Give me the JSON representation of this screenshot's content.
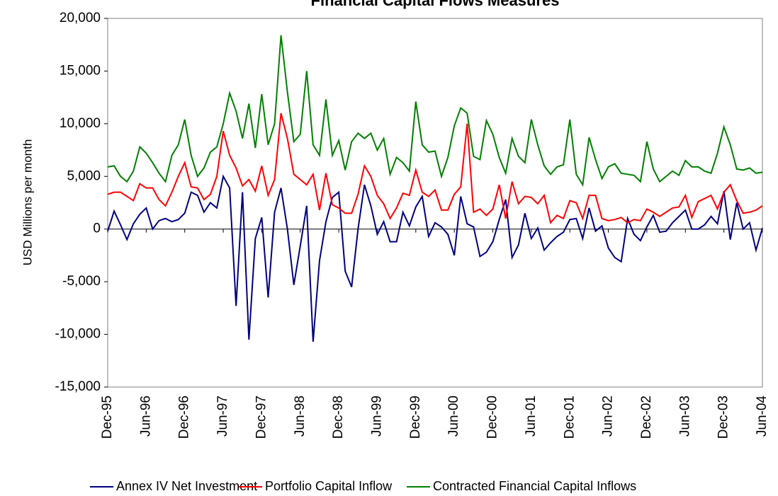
{
  "chart_data": {
    "type": "line",
    "title": "Financial Capital Flows Measures",
    "y_label": "USD Millions per month",
    "categories": [
      "Dec-95",
      null,
      null,
      null,
      null,
      null,
      "Jun-96",
      null,
      null,
      null,
      null,
      null,
      "Dec-96",
      null,
      null,
      null,
      null,
      null,
      "Jun-97",
      null,
      null,
      null,
      null,
      null,
      "Dec-97",
      null,
      null,
      null,
      null,
      null,
      "Jun-98",
      null,
      null,
      null,
      null,
      null,
      "Dec-98",
      null,
      null,
      null,
      null,
      null,
      "Jun-99",
      null,
      null,
      null,
      null,
      null,
      "Dec-99",
      null,
      null,
      null,
      null,
      null,
      "Jun-00",
      null,
      null,
      null,
      null,
      null,
      "Dec-00",
      null,
      null,
      null,
      null,
      null,
      "Jun-01",
      null,
      null,
      null,
      null,
      null,
      "Dec-01",
      null,
      null,
      null,
      null,
      null,
      "Jun-02",
      null,
      null,
      null,
      null,
      null,
      "Dec-02",
      null,
      null,
      null,
      null,
      null,
      "Jun-03",
      null,
      null,
      null,
      null,
      null,
      "Dec-03",
      null,
      null,
      null,
      null,
      null,
      "Jun-04"
    ],
    "series": [
      {
        "name": "Annex IV Net Investment",
        "color": "#000080",
        "values": [
          -200,
          1700,
          400,
          -1000,
          500,
          1400,
          2000,
          0,
          800,
          1000,
          700,
          900,
          1500,
          3500,
          3200,
          1600,
          2500,
          2000,
          5000,
          3900,
          -7300,
          3500,
          -10500,
          -900,
          1100,
          -6500,
          1600,
          3900,
          0,
          -5300,
          -1600,
          2200,
          -10700,
          -3000,
          700,
          3000,
          3500,
          -4000,
          -5500,
          0,
          4200,
          2200,
          -500,
          700,
          -1200,
          -1200,
          1600,
          300,
          2100,
          3100,
          -700,
          600,
          200,
          -500,
          -2500,
          3100,
          500,
          200,
          -2600,
          -2200,
          -1200,
          900,
          2800,
          -2700,
          -1500,
          1500,
          -900,
          100,
          -2000,
          -1300,
          -700,
          -300,
          900,
          1000,
          -900,
          2000,
          -200,
          300,
          -1800,
          -2700,
          -3100,
          1000,
          -500,
          -1100,
          200,
          1300,
          -300,
          -200,
          600,
          1200,
          1800,
          0,
          0,
          400,
          1200,
          500,
          3600,
          -1000,
          2500,
          0,
          600,
          -2000,
          100
        ]
      },
      {
        "name": "Portfolio Capital Inflow",
        "color": "#ff0000",
        "values": [
          3300,
          3500,
          3500,
          3100,
          2700,
          4300,
          3900,
          3900,
          2800,
          2200,
          3500,
          5000,
          6300,
          4000,
          3900,
          2800,
          3300,
          5000,
          9300,
          7000,
          5800,
          4100,
          4700,
          3600,
          6000,
          3200,
          4700,
          11000,
          8600,
          5200,
          4700,
          4200,
          5200,
          1800,
          5300,
          2300,
          2000,
          1500,
          1500,
          3300,
          6000,
          5000,
          3200,
          2400,
          1000,
          2000,
          3400,
          3200,
          5600,
          3500,
          3100,
          3700,
          1800,
          1800,
          3300,
          4000,
          10000,
          1600,
          1900,
          1300,
          1900,
          4200,
          1000,
          4500,
          2400,
          3100,
          3000,
          2400,
          3200,
          600,
          1300,
          1000,
          2700,
          2500,
          1000,
          3200,
          3200,
          1000,
          800,
          900,
          1100,
          600,
          900,
          800,
          1900,
          1600,
          1200,
          1600,
          2000,
          2100,
          3200,
          1100,
          2600,
          2900,
          3200,
          1900,
          3500,
          4200,
          2700,
          1500,
          1600,
          1800,
          2200
        ]
      },
      {
        "name": "Contracted Financial Capital Inflows",
        "color": "#008000",
        "values": [
          5900,
          6000,
          5000,
          4500,
          5500,
          7800,
          7200,
          6300,
          5300,
          4500,
          7000,
          8000,
          10400,
          7000,
          5000,
          5800,
          7300,
          7800,
          10000,
          12900,
          11200,
          8600,
          11900,
          7700,
          12800,
          8000,
          10000,
          18400,
          13000,
          8300,
          9000,
          15000,
          8000,
          7000,
          12300,
          7000,
          8400,
          5600,
          8300,
          9100,
          8600,
          9100,
          7500,
          8600,
          5200,
          6800,
          6300,
          5500,
          12100,
          8000,
          7300,
          7400,
          5000,
          6800,
          9800,
          11500,
          11000,
          6900,
          6600,
          10300,
          9000,
          6800,
          5300,
          8600,
          6900,
          6300,
          10400,
          8000,
          6000,
          5200,
          5900,
          6100,
          10400,
          5200,
          4200,
          8700,
          6600,
          4800,
          5900,
          6200,
          5300,
          5200,
          5100,
          4500,
          8300,
          5700,
          4500,
          5000,
          5500,
          5100,
          6500,
          5900,
          5900,
          5500,
          5300,
          7200,
          9700,
          8000,
          5700,
          5600,
          5800,
          5300,
          5400
        ]
      }
    ],
    "ylim": [
      -15000,
      20000
    ],
    "yticks": [
      {
        "value": -15000,
        "label": "-15,000"
      },
      {
        "value": -10000,
        "label": "-10,000"
      },
      {
        "value": -5000,
        "label": "-5,000"
      },
      0,
      {
        "value": 5000,
        "label": "5,000"
      },
      {
        "value": 10000,
        "label": "10,000"
      },
      {
        "value": 15000,
        "label": "15,000"
      },
      {
        "value": 20000,
        "label": "20,000"
      }
    ],
    "legend": "bottom"
  }
}
